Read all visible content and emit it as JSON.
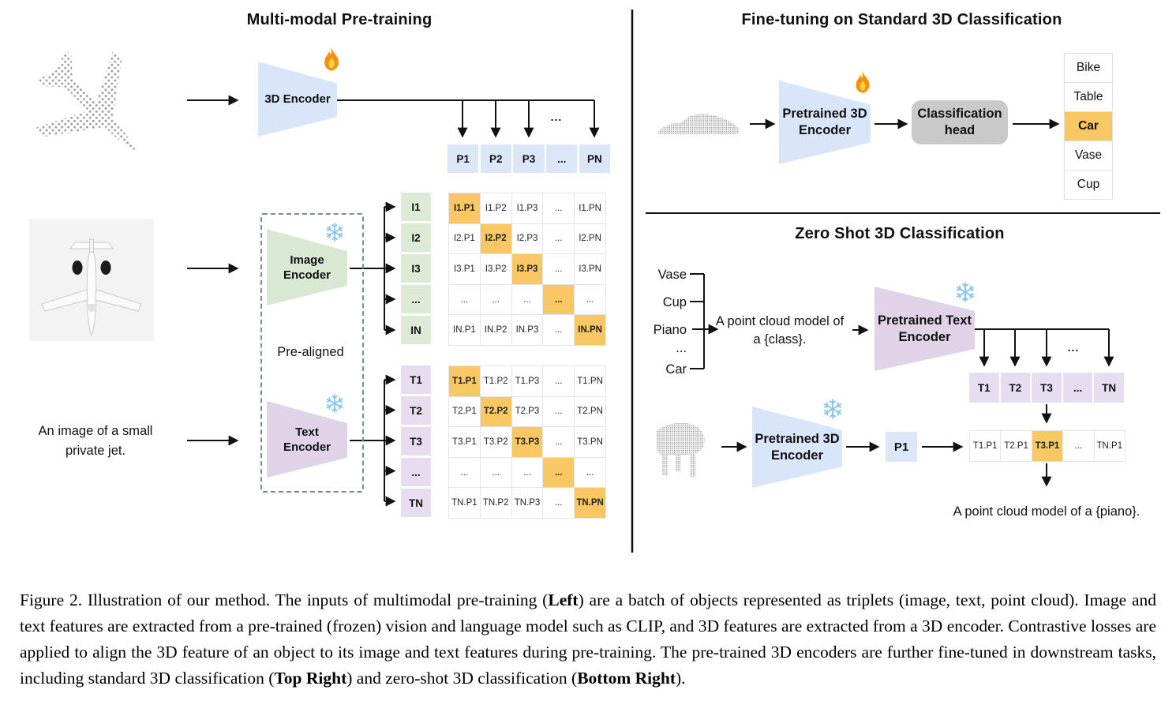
{
  "figure": {
    "left": {
      "title": "Multi-modal Pre-training",
      "encoder_3d_label": "3D Encoder",
      "image_encoder_label": "Image\nEncoder",
      "text_encoder_label": "Text\nEncoder",
      "pre_aligned_label": "Pre-aligned",
      "text_input": "An image of a small\nprivate jet.",
      "dots": "...",
      "p_row": [
        "P1",
        "P2",
        "P3",
        "...",
        "PN"
      ],
      "i_labels": [
        "I1",
        "I2",
        "I3",
        "...",
        "IN"
      ],
      "i_matrix": [
        [
          "I1.P1",
          "I1.P2",
          "I1.P3",
          "...",
          "I1.PN"
        ],
        [
          "I2.P1",
          "I2.P2",
          "I2.P3",
          "...",
          "I2.PN"
        ],
        [
          "I3.P1",
          "I3.P2",
          "I3.P3",
          "...",
          "I3.PN"
        ],
        [
          "...",
          "...",
          "...",
          "...",
          "..."
        ],
        [
          "IN.P1",
          "IN.P2",
          "IN.P3",
          "...",
          "IN.PN"
        ]
      ],
      "t_labels": [
        "T1",
        "T2",
        "T3",
        "...",
        "TN"
      ],
      "t_matrix": [
        [
          "T1.P1",
          "T1.P2",
          "T1.P3",
          "...",
          "T1.PN"
        ],
        [
          "T2.P1",
          "T2.P2",
          "T2.P3",
          "...",
          "T2.PN"
        ],
        [
          "T3.P1",
          "T3.P2",
          "T3.P3",
          "...",
          "T3.PN"
        ],
        [
          "...",
          "...",
          "...",
          "...",
          "..."
        ],
        [
          "TN.P1",
          "TN.P2",
          "TN.P3",
          "...",
          "TN.PN"
        ]
      ]
    },
    "top_right": {
      "title": "Fine-tuning on Standard 3D Classification",
      "encoder_label": "Pretrained 3D\nEncoder",
      "head_label": "Classification\nhead",
      "classes": [
        "Bike",
        "Table",
        "Car",
        "Vase",
        "Cup"
      ],
      "highlighted_class": "Car"
    },
    "bottom_right": {
      "title": "Zero Shot 3D Classification",
      "prompt_classes": [
        "Vase",
        "Cup",
        "Piano",
        "...",
        "Car"
      ],
      "prompt_text": "A point cloud model of\na {class}.",
      "text_encoder_label": "Pretrained Text\nEncoder",
      "encoder_3d_label": "Pretrained 3D\nEncoder",
      "p1_label": "P1",
      "dots": "...",
      "t_row": [
        "T1",
        "T2",
        "T3",
        "...",
        "TN"
      ],
      "result_row": [
        "T1.P1",
        "T2.P1",
        "T3.P1",
        "...",
        "TN.P1"
      ],
      "highlight_index": 2,
      "result_text": "A point cloud model of a {piano}."
    }
  },
  "caption": {
    "segments": [
      {
        "text": "Figure 2. Illustration of our method. The inputs of multimodal pre-training (",
        "bold": false
      },
      {
        "text": "Left",
        "bold": true
      },
      {
        "text": ") are a batch of objects represented as triplets (image, text, point cloud). Image and text features are extracted from a pre-trained (frozen) vision and language model such as CLIP, and 3D features are extracted from a 3D encoder. Contrastive losses are applied to align the 3D feature of an object to its image and text features during pre-training. The pre-trained 3D encoders are further fine-tuned in downstream tasks, including standard 3D classification (",
        "bold": false
      },
      {
        "text": "Top Right",
        "bold": true
      },
      {
        "text": ") and zero-shot 3D classification (",
        "bold": false
      },
      {
        "text": "Bottom Right",
        "bold": true
      },
      {
        "text": ").",
        "bold": false
      }
    ]
  },
  "colors": {
    "blue": "#d9e5f8",
    "green": "#d9e8d2",
    "purple_cell": "#e6def0",
    "purple_trapezoid": "#e0d3e7",
    "orange_highlight": "#f9c863",
    "gray_head": "#c9c9c9"
  }
}
